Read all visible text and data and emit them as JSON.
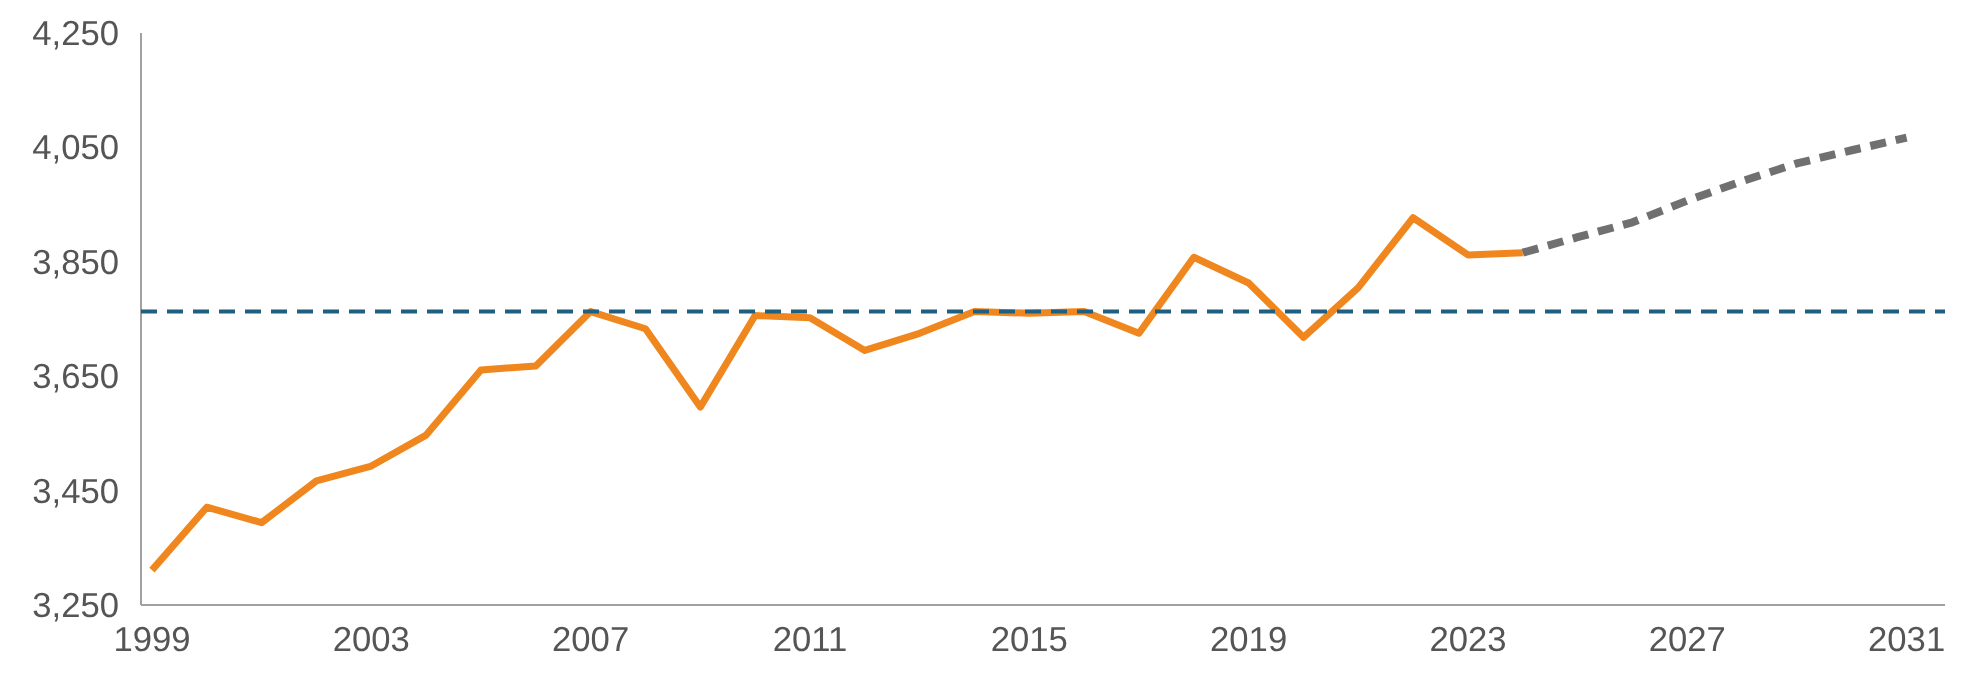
{
  "chart_data": {
    "type": "line",
    "x": [
      1999,
      2000,
      2001,
      2002,
      2003,
      2004,
      2005,
      2006,
      2007,
      2008,
      2009,
      2010,
      2011,
      2012,
      2013,
      2014,
      2015,
      2016,
      2017,
      2018,
      2019,
      2020,
      2021,
      2022,
      2023,
      2024,
      2025,
      2026,
      2027,
      2028,
      2029,
      2030,
      2031
    ],
    "series": [
      {
        "color": "#f0871e",
        "line_style": "solid",
        "values": [
          3311,
          3421,
          3394,
          3467,
          3493,
          3547,
          3661,
          3668,
          3763,
          3733,
          3596,
          3756,
          3752,
          3695,
          3725,
          3763,
          3760,
          3763,
          3725,
          3858,
          3813,
          3718,
          3805,
          3927,
          3862,
          3866,
          null,
          null,
          null,
          null,
          null,
          null,
          null
        ]
      },
      {
        "color": "#707070",
        "line_style": "dashed",
        "values": [
          null,
          null,
          null,
          null,
          null,
          null,
          null,
          null,
          null,
          null,
          null,
          null,
          null,
          null,
          null,
          null,
          null,
          null,
          null,
          null,
          null,
          null,
          null,
          null,
          null,
          3866,
          3893,
          3919,
          3957,
          3991,
          4022,
          4045,
          4067
        ]
      }
    ],
    "xlim": [
      1998.8,
      2031.7
    ],
    "ylim": [
      3250,
      4250
    ],
    "xticks": [
      1999,
      2003,
      2007,
      2011,
      2015,
      2019,
      2023,
      2027,
      2031
    ],
    "yticks": [
      {
        "value": 3250,
        "label": "3,250"
      },
      {
        "value": 3450,
        "label": "3,450"
      },
      {
        "value": 3650,
        "label": "3,650"
      },
      {
        "value": 3850,
        "label": "3,850"
      },
      {
        "value": 4050,
        "label": "4,050"
      },
      {
        "value": 4250,
        "label": "4,250"
      }
    ],
    "ref_lines": [
      {
        "axis": "y",
        "value": 3763,
        "color": "#1f5f7f",
        "line_style": "dashed"
      }
    ],
    "grid": false
  }
}
